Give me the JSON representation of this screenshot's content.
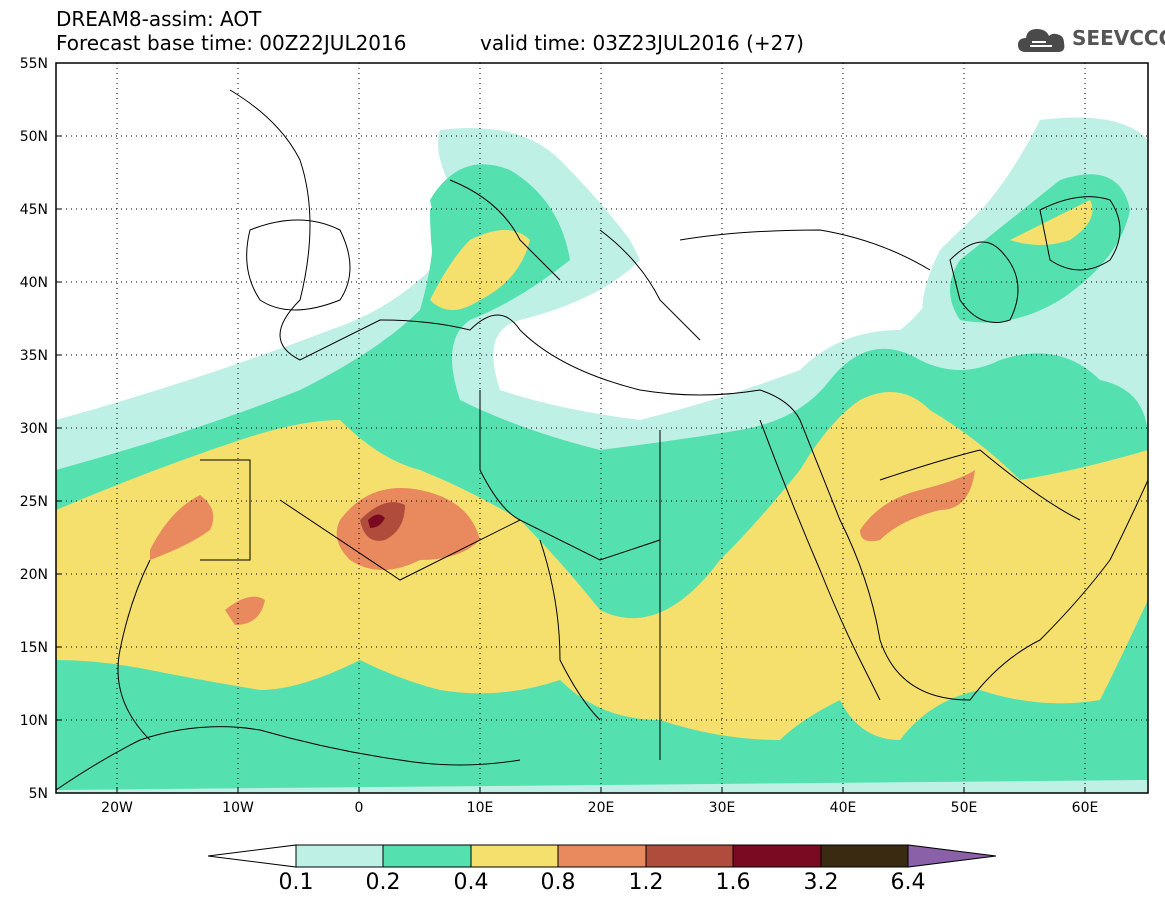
{
  "header": {
    "title": "DREAM8-assim: AOT",
    "base_time": "Forecast base time: 00Z22JUL2016",
    "valid_time": "valid time: 03Z23JUL2016 (+27)"
  },
  "logo": {
    "text": "SEEVCCC",
    "icon": "cloud-icon"
  },
  "map": {
    "lat_labels": [
      "55N",
      "50N",
      "45N",
      "40N",
      "35N",
      "30N",
      "25N",
      "20N",
      "15N",
      "10N",
      "5N"
    ],
    "lon_labels": [
      "20W",
      "10W",
      "0",
      "10E",
      "20E",
      "30E",
      "40E",
      "50E",
      "60E"
    ]
  },
  "colorbar": {
    "labels": [
      "0.1",
      "0.2",
      "0.4",
      "0.8",
      "1.2",
      "1.6",
      "3.2",
      "6.4"
    ],
    "colors": [
      "#ffffff",
      "#bff0e6",
      "#55e0b0",
      "#f5e06e",
      "#e88a5e",
      "#b04c3c",
      "#7a0a22",
      "#3a2a12",
      "#8a60a8"
    ]
  },
  "fields": {
    "very_light": "#bff0e6",
    "light": "#55e0b0",
    "medium": "#f5e06e",
    "high": "#e88a5e",
    "very_high": "#b04c3c",
    "extreme": "#7a0a22"
  }
}
